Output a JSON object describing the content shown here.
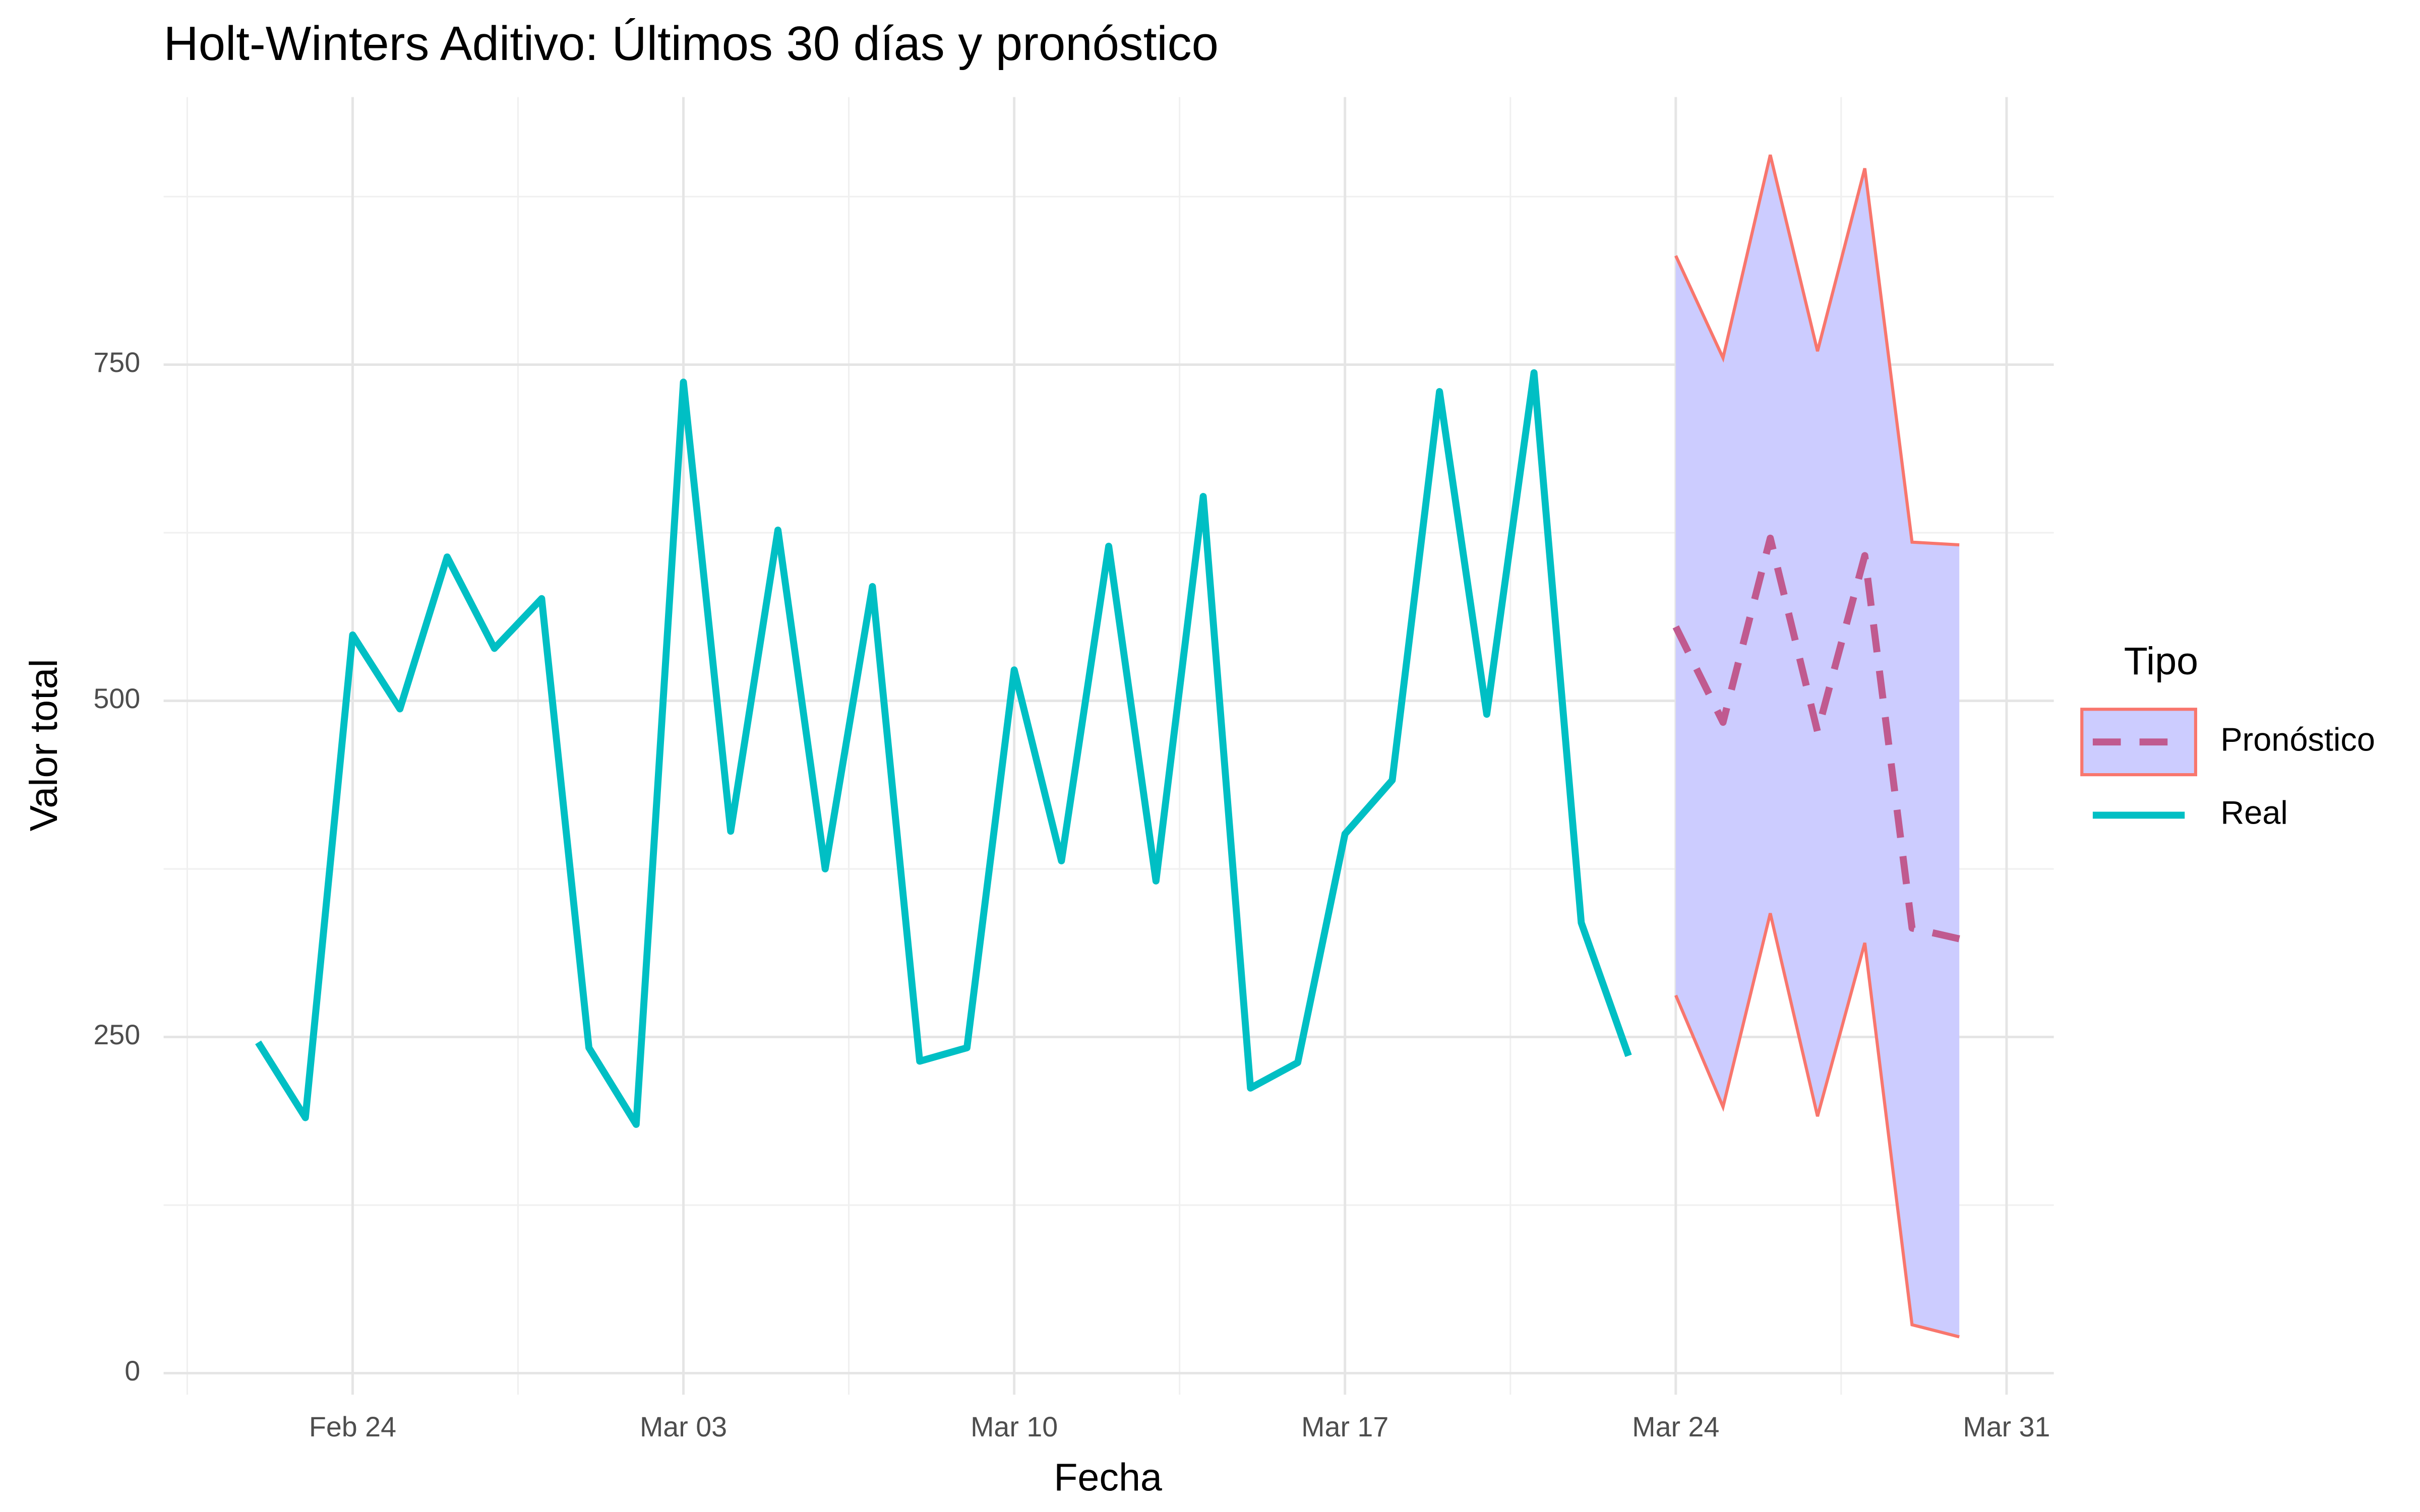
{
  "chart_data": {
    "type": "line",
    "title": "Holt-Winters Aditivo: Últimos 30 días y pronóstico",
    "x_label": "Fecha",
    "y_label": "Valor total",
    "legend_title": "Tipo",
    "legend_position": "right",
    "grid": true,
    "xlim": [
      "02-20",
      "04-01"
    ],
    "xticks": [
      {
        "value": "02-24",
        "label": "Feb 24"
      },
      {
        "value": "03-03",
        "label": "Mar 03"
      },
      {
        "value": "03-10",
        "label": "Mar 10"
      },
      {
        "value": "03-17",
        "label": "Mar 17"
      },
      {
        "value": "03-24",
        "label": "Mar 24"
      },
      {
        "value": "03-31",
        "label": "Mar 31"
      }
    ],
    "ylim": [
      -16,
      949
    ],
    "yticks": [
      0,
      250,
      500,
      750
    ],
    "series": [
      {
        "name": "Pronóstico",
        "color": "#c05a8f",
        "dashed": true,
        "band_fill": "#ccccff",
        "band_edge": "#f8766d",
        "x": [
          "03-24",
          "03-25",
          "03-26",
          "03-27",
          "03-28",
          "03-29",
          "03-30"
        ],
        "values": [
          555,
          484,
          621,
          477,
          608,
          331,
          323
        ],
        "upper": [
          831,
          755,
          906,
          760,
          896,
          618,
          616
        ],
        "lower": [
          281,
          198,
          342,
          191,
          320,
          36,
          27
        ]
      },
      {
        "name": "Real",
        "color": "#00bfc4",
        "dashed": false,
        "x": [
          "02-22",
          "02-23",
          "02-24",
          "02-25",
          "02-26",
          "02-27",
          "02-28",
          "03-01",
          "03-02",
          "03-03",
          "03-04",
          "03-05",
          "03-06",
          "03-07",
          "03-08",
          "03-09",
          "03-10",
          "03-11",
          "03-12",
          "03-13",
          "03-14",
          "03-15",
          "03-16",
          "03-17",
          "03-18",
          "03-19",
          "03-20",
          "03-21",
          "03-22",
          "03-23"
        ],
        "values": [
          246,
          190,
          549,
          494,
          607,
          539,
          576,
          242,
          185,
          737,
          403,
          627,
          375,
          585,
          232,
          242,
          523,
          381,
          615,
          366,
          652,
          212,
          231,
          401,
          441,
          730,
          490,
          744,
          335,
          236
        ]
      }
    ]
  }
}
